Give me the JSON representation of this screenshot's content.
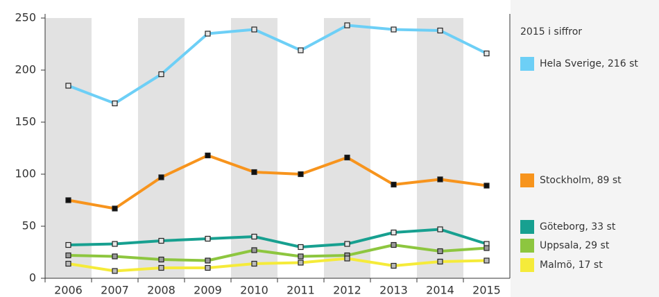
{
  "chart_data": {
    "type": "line",
    "legend_title": "2015 i siffror",
    "x": [
      2006,
      2007,
      2008,
      2009,
      2010,
      2011,
      2012,
      2013,
      2014,
      2015
    ],
    "xlim": [
      2005.5,
      2015.5
    ],
    "xticks": [
      2006,
      2007,
      2008,
      2009,
      2010,
      2011,
      2012,
      2013,
      2014,
      2015
    ],
    "ylim": [
      0,
      250
    ],
    "yticks": [
      0,
      50,
      100,
      150,
      200,
      250
    ],
    "shaded_bands": true,
    "series": [
      {
        "name": "Hela Sverige, 216 st",
        "color": "#6dcff6",
        "marker_fill": "#e6e6e6",
        "values": [
          185,
          168,
          196,
          235,
          239,
          219,
          243,
          239,
          238,
          216
        ]
      },
      {
        "name": "Stockholm, 89 st",
        "color": "#f7941d",
        "marker_fill": "#111111",
        "values": [
          75,
          67,
          97,
          118,
          102,
          100,
          116,
          90,
          95,
          89
        ]
      },
      {
        "name": "Göteborg, 33 st",
        "color": "#17a090",
        "marker_fill": "#e6e6e6",
        "values": [
          32,
          33,
          36,
          38,
          40,
          30,
          33,
          44,
          47,
          33
        ]
      },
      {
        "name": "Uppsala, 29 st",
        "color": "#8dc63f",
        "marker_fill": "#9a9a9a",
        "values": [
          22,
          21,
          18,
          17,
          27,
          21,
          22,
          32,
          26,
          29
        ]
      },
      {
        "name": "Malmö, 17 st",
        "color": "#f5eb3a",
        "marker_fill": "#bbbbbb",
        "values": [
          14,
          7,
          10,
          10,
          14,
          15,
          19,
          12,
          16,
          17
        ]
      }
    ]
  }
}
